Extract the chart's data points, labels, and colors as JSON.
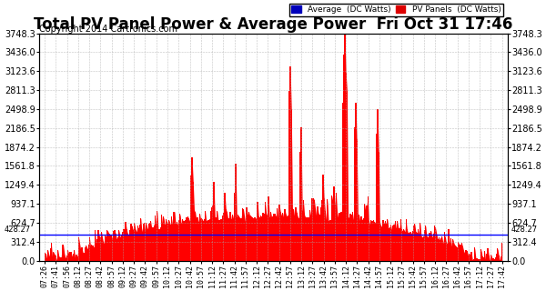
{
  "title": "Total PV Panel Power & Average Power  Fri Oct 31 17:46",
  "copyright": "Copyright 2014 Cartronics.com",
  "legend_avg": "Average  (DC Watts)",
  "legend_pv": "PV Panels  (DC Watts)",
  "legend_avg_color": "#0000bb",
  "legend_pv_color": "#dd0000",
  "avg_value": 428.27,
  "y_max": 3748.3,
  "y_min": 0.0,
  "y_ticks": [
    0.0,
    312.4,
    624.7,
    937.1,
    1249.4,
    1561.8,
    1874.2,
    2186.5,
    2498.9,
    2811.3,
    3123.6,
    3436.0,
    3748.3
  ],
  "bg_color": "#ffffff",
  "grid_color": "#aaaaaa",
  "area_color": "#ff0000",
  "avg_line_color": "#0000ff",
  "title_fontsize": 12,
  "copyright_fontsize": 7,
  "x_label_fontsize": 6,
  "y_label_fontsize": 7,
  "x_tick_labels": [
    "07:26",
    "07:41",
    "07:56",
    "08:12",
    "08:27",
    "08:42",
    "08:57",
    "09:12",
    "09:27",
    "09:42",
    "09:57",
    "10:12",
    "10:27",
    "10:42",
    "10:57",
    "11:12",
    "11:27",
    "11:42",
    "11:57",
    "12:12",
    "12:27",
    "12:42",
    "12:57",
    "13:12",
    "13:27",
    "13:42",
    "13:57",
    "14:12",
    "14:27",
    "14:42",
    "14:57",
    "15:12",
    "15:27",
    "15:42",
    "15:57",
    "16:12",
    "16:27",
    "16:42",
    "16:57",
    "17:12",
    "17:27",
    "17:42"
  ]
}
